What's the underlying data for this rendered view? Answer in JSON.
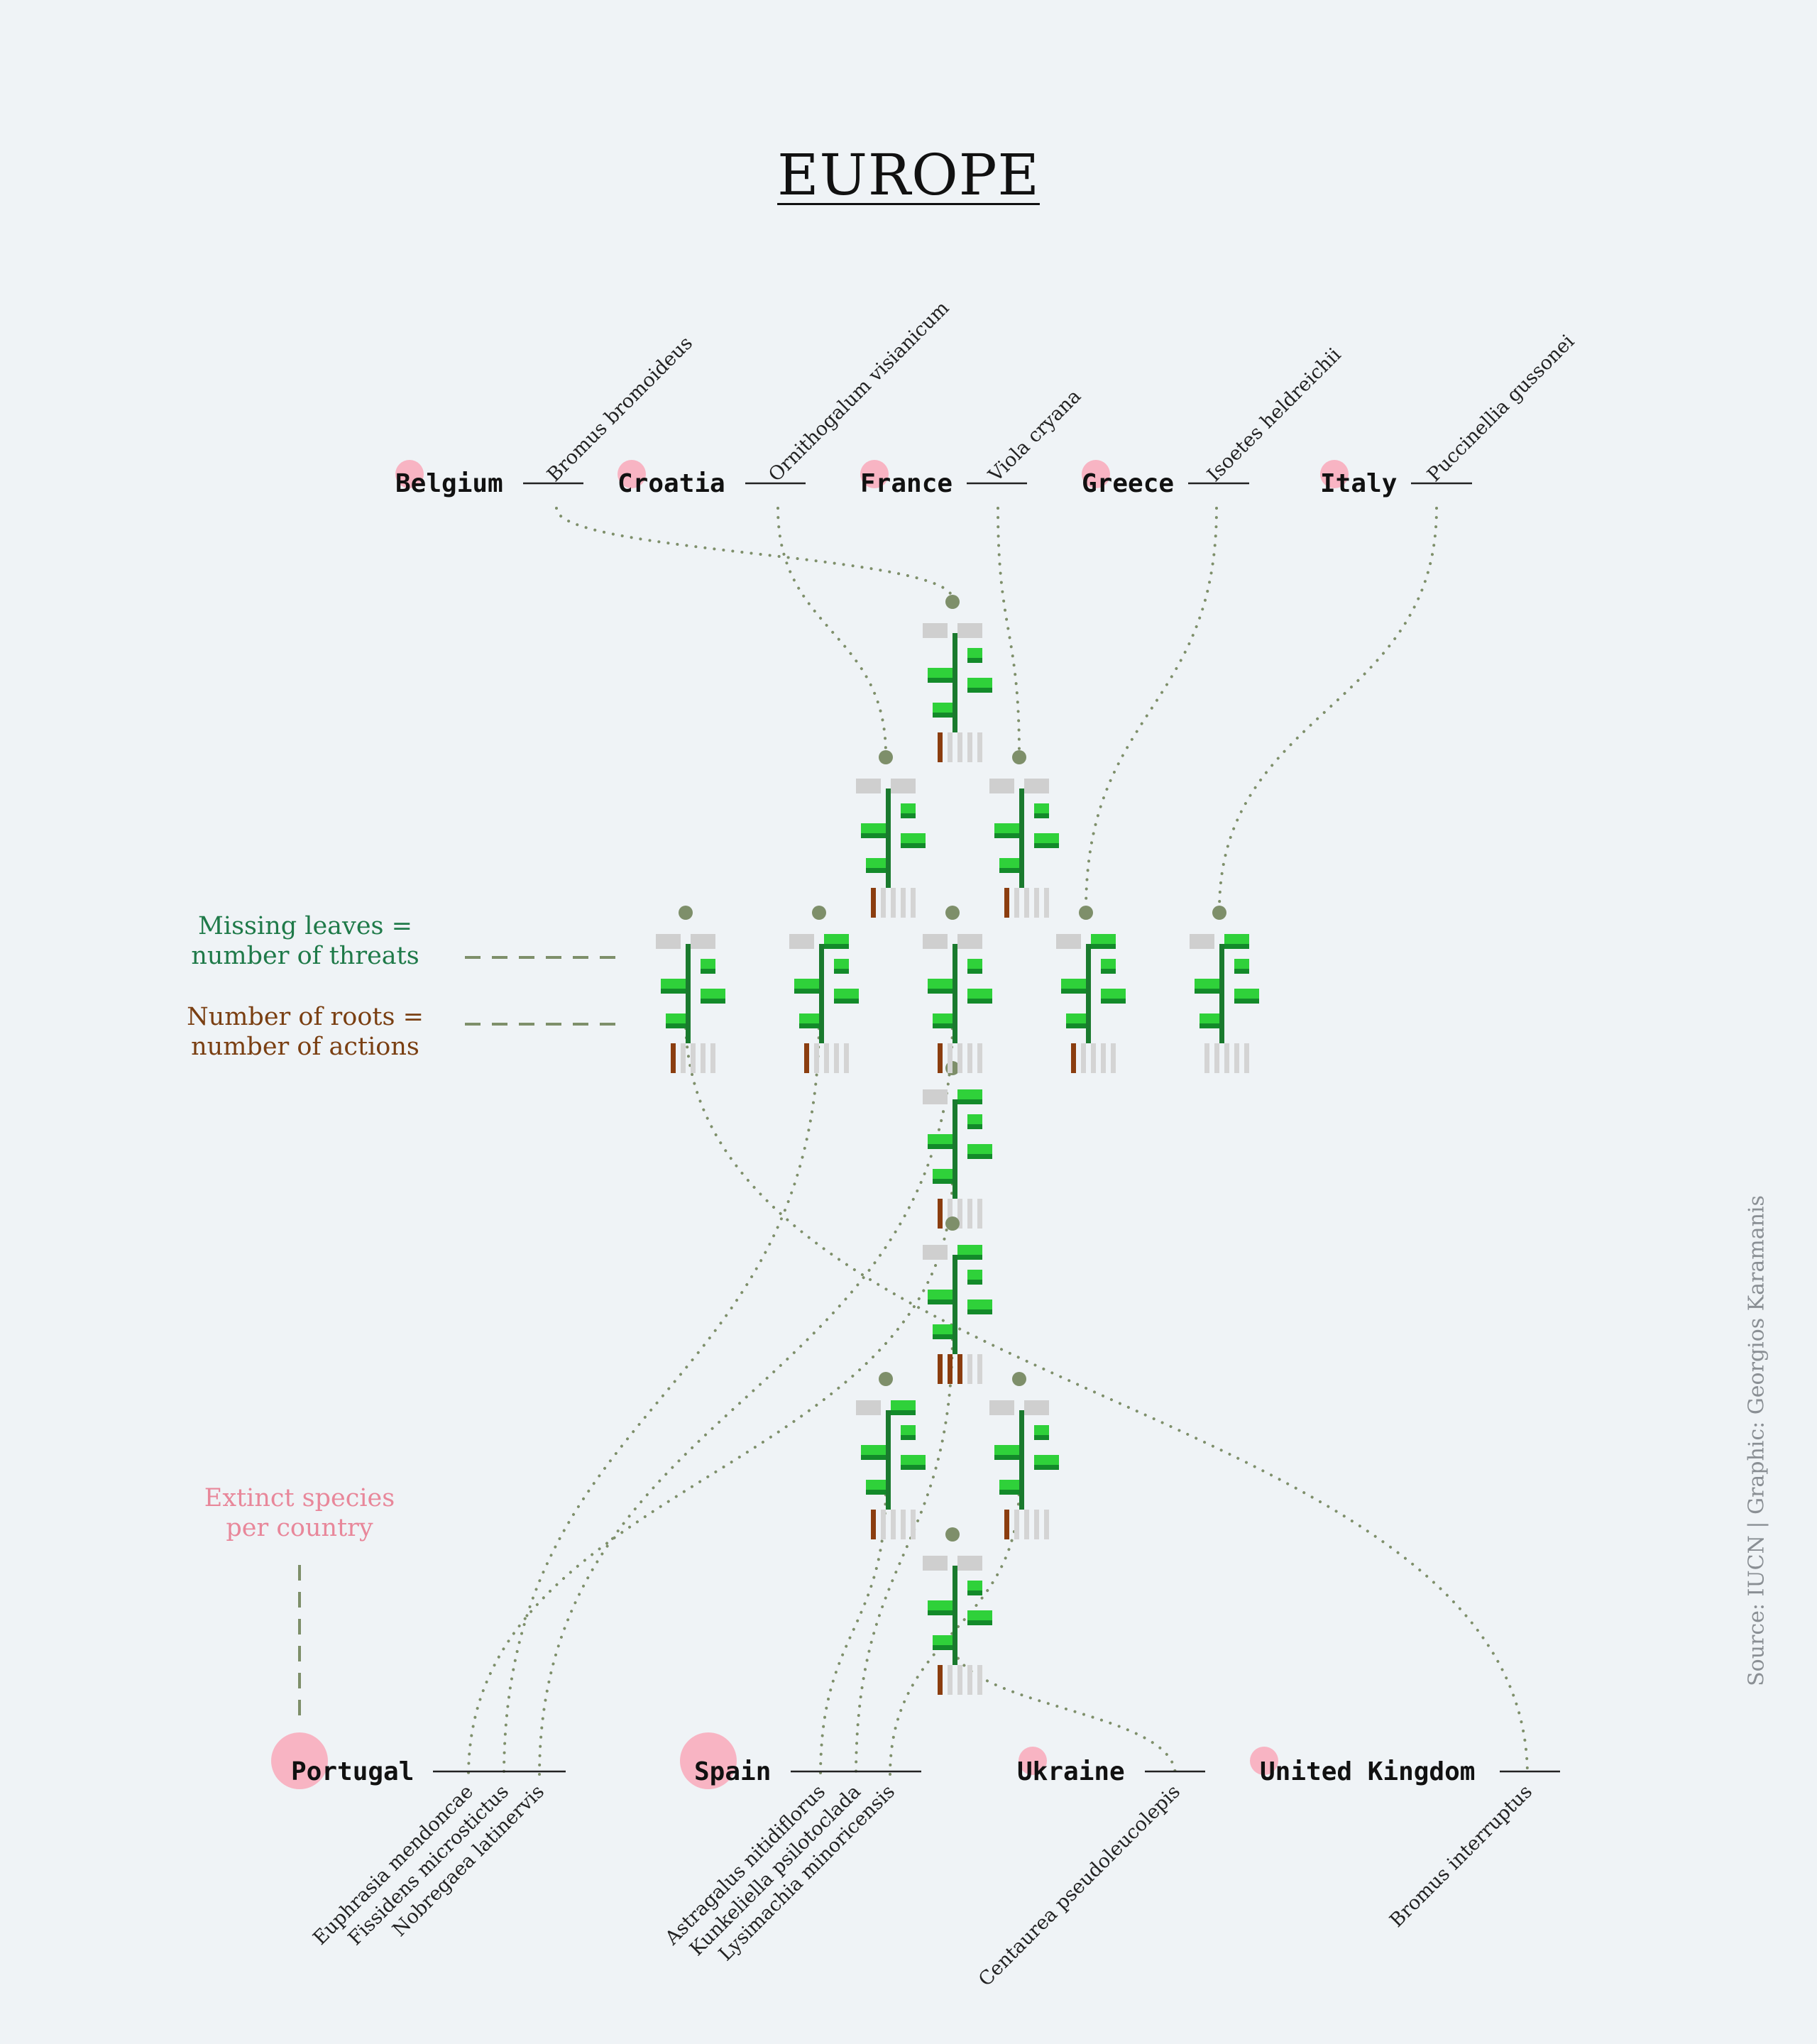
{
  "title": "EUROPE",
  "credit": "Source: IUCN | Graphic: Georgios Karamanis",
  "legend": {
    "threats_line1": "Missing leaves =",
    "threats_line2": "number of threats",
    "actions_line1": "Number of roots =",
    "actions_line2": "number of actions",
    "extinct_line1": "Extinct species",
    "extinct_line2": "per country"
  },
  "colors": {
    "background": "#eff3f6",
    "extinct_dot": "#f8b4c3",
    "connector": "#7e8f6a",
    "leaf": "#2fd13a",
    "leaf_dark": "#138a2a",
    "stem": "#1a7a2e",
    "root_active": "#8b3d0f",
    "root_inactive": "#d4d4d4",
    "missing_leaf": "#cfcfcf",
    "threats_text": "#1f7a49",
    "actions_text": "#7a3f12",
    "extinct_text": "#e8879a"
  },
  "countries_top": [
    {
      "name": "Belgium",
      "extinct": 1,
      "species": [
        "Bromus bromoideus"
      ]
    },
    {
      "name": "Croatia",
      "extinct": 1,
      "species": [
        "Ornithogalum visianicum"
      ]
    },
    {
      "name": "France",
      "extinct": 1,
      "species": [
        "Viola cryana"
      ]
    },
    {
      "name": "Greece",
      "extinct": 1,
      "species": [
        "Isoetes heldreichii"
      ]
    },
    {
      "name": "Italy",
      "extinct": 1,
      "species": [
        "Puccinellia gussonei"
      ]
    }
  ],
  "countries_bottom": [
    {
      "name": "Portugal",
      "extinct": 3,
      "species": [
        "Euphrasia mendoncae",
        "Fissidens microstictus",
        "Nobregaea latinervis"
      ]
    },
    {
      "name": "Spain",
      "extinct": 3,
      "species": [
        "Astragalus nitidiflorus",
        "Kunkeliella psilotoclada",
        "Lysimachia minoricensis"
      ]
    },
    {
      "name": "Ukraine",
      "extinct": 1,
      "species": [
        "Centaurea pseudoleucolepis"
      ]
    },
    {
      "name": "United Kingdom",
      "extinct": 1,
      "species": [
        "Bromus interruptus"
      ]
    }
  ],
  "plants": [
    {
      "species": "Bromus bromoideus",
      "threats": 2,
      "actions": 1
    },
    {
      "species": "Ornithogalum visianicum",
      "threats": 2,
      "actions": 1
    },
    {
      "species": "Viola cryana",
      "threats": 2,
      "actions": 1
    },
    {
      "species": "Isoetes heldreichii",
      "threats": 1,
      "actions": 1
    },
    {
      "species": "Puccinellia gussonei",
      "threats": 1,
      "actions": 0
    },
    {
      "species": "Euphrasia mendoncae",
      "threats": 1,
      "actions": 1
    },
    {
      "species": "Fissidens microstictus",
      "threats": 1,
      "actions": 1
    },
    {
      "species": "Nobregaea latinervis",
      "threats": 2,
      "actions": 1
    },
    {
      "species": "Astragalus nitidiflorus",
      "threats": 1,
      "actions": 1
    },
    {
      "species": "Kunkeliella psilotoclada",
      "threats": 1,
      "actions": 3
    },
    {
      "species": "Lysimachia minoricensis",
      "threats": 2,
      "actions": 1
    },
    {
      "species": "Centaurea pseudoleucolepis",
      "threats": 2,
      "actions": 1
    },
    {
      "species": "Bromus interruptus",
      "threats": 2,
      "actions": 1
    }
  ]
}
